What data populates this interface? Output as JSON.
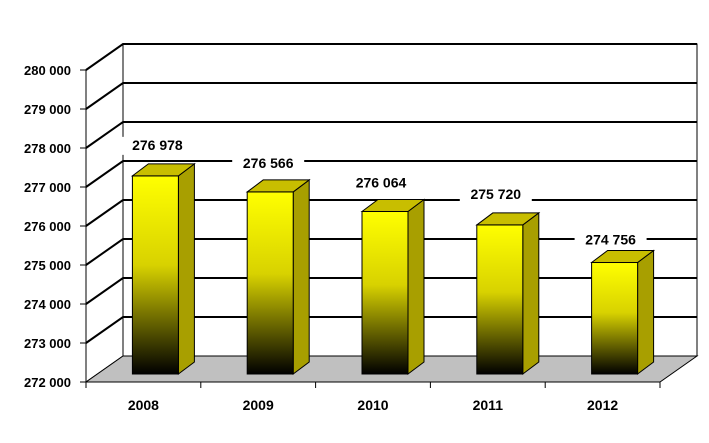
{
  "chart_data": {
    "type": "bar",
    "style": "3d",
    "categories": [
      "2008",
      "2009",
      "2010",
      "2011",
      "2012"
    ],
    "values": [
      276978,
      276566,
      276064,
      275720,
      274756
    ],
    "data_labels": [
      "276 978",
      "276 566",
      "276 064",
      "275 720",
      "274 756"
    ],
    "y_ticks": [
      272000,
      273000,
      274000,
      275000,
      276000,
      277000,
      278000,
      279000,
      280000
    ],
    "y_tick_labels": [
      "272 000",
      "273 000",
      "274 000",
      "275 000",
      "276 000",
      "277 000",
      "278 000",
      "279 000",
      "280 000"
    ],
    "ylim": [
      272000,
      280000
    ],
    "title": "",
    "xlabel": "",
    "ylabel": "",
    "grid": true,
    "legend": "none",
    "colors": {
      "bar_top": "#ffff00",
      "bar_bottom": "#000000",
      "bar_side": "#a89f00",
      "bar_cap": "#c8be00",
      "floor": "#c0c0c0",
      "gridline": "#000000"
    }
  }
}
